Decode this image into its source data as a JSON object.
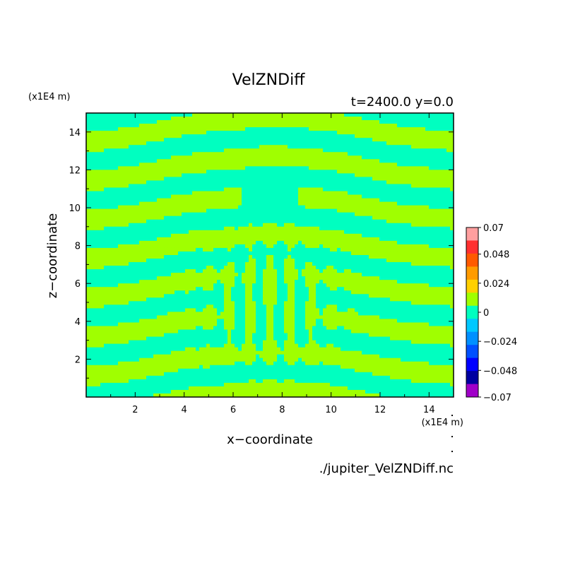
{
  "chart_data": {
    "type": "heatmap",
    "title": "VelZNDiff",
    "subtitle": "t=2400.0 y=0.0",
    "xlabel": "x−coordinate",
    "ylabel": "z−coordinate",
    "x_unit": "(x1E4 m)",
    "y_unit": "(x1E4 m)",
    "xlim": [
      0,
      15
    ],
    "ylim": [
      0,
      15
    ],
    "x_ticks": [
      "2",
      "4",
      "6",
      "8",
      "10",
      "12",
      "14"
    ],
    "y_ticks": [
      "2",
      "4",
      "6",
      "8",
      "10",
      "12",
      "14"
    ],
    "x_tick_values": [
      2,
      4,
      6,
      8,
      10,
      12,
      14
    ],
    "y_tick_values": [
      2,
      4,
      6,
      8,
      10,
      12,
      14
    ],
    "colorbar": {
      "labels": [
        "0.07",
        "0.048",
        "0.024",
        "0",
        "−0.024",
        "−0.048",
        "−0.07"
      ],
      "label_values": [
        0.07,
        0.048,
        0.024,
        0,
        -0.024,
        -0.048,
        -0.07
      ],
      "colors": [
        "#ff9f9f",
        "#ff3030",
        "#ff5a00",
        "#ff9b00",
        "#ffd000",
        "#a0ff00",
        "#00ffc0",
        "#00c8ff",
        "#0090ff",
        "#0050ff",
        "#0000ff",
        "#0000a0",
        "#a000c8"
      ]
    },
    "field_summary": "Alternating horizontal bands of slightly positive (~0, green) and slightly negative (~0, cyan) values with a symmetric vertical finger pattern centred near x=7.5, z=2-8",
    "band_colors": {
      "positive_small": "#a0ff00",
      "negative_small": "#00ffc0"
    },
    "footer": "./jupiter_VelZNDiff.nc"
  }
}
